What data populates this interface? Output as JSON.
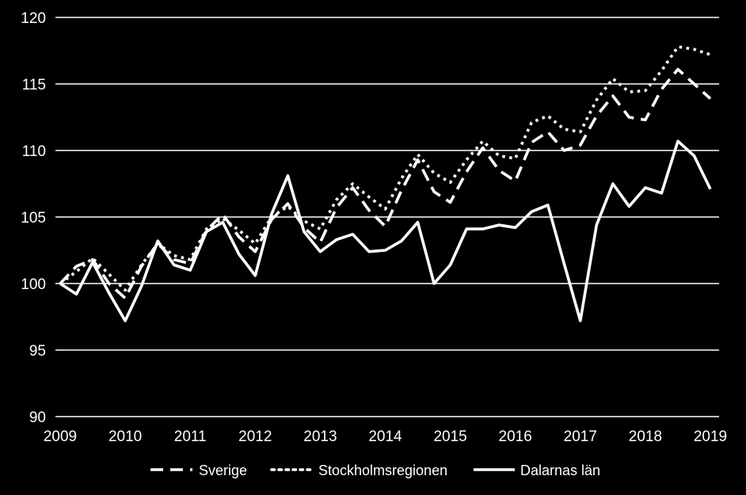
{
  "chart_data": {
    "type": "line",
    "title": "",
    "xlabel": "",
    "ylabel": "",
    "ylim": [
      90,
      120
    ],
    "yticks": [
      90,
      95,
      100,
      105,
      110,
      115,
      120
    ],
    "xticks": [
      "2009",
      "2010",
      "2011",
      "2012",
      "2013",
      "2014",
      "2015",
      "2016",
      "2017",
      "2018",
      "2019"
    ],
    "grid": "horizontal",
    "legend_position": "bottom",
    "background_color": "#000000",
    "line_color": "#ffffff",
    "x": [
      2009.0,
      2009.25,
      2009.5,
      2009.75,
      2010.0,
      2010.25,
      2010.5,
      2010.75,
      2011.0,
      2011.25,
      2011.5,
      2011.75,
      2012.0,
      2012.25,
      2012.5,
      2012.75,
      2013.0,
      2013.25,
      2013.5,
      2013.75,
      2014.0,
      2014.25,
      2014.5,
      2014.75,
      2015.0,
      2015.25,
      2015.5,
      2015.75,
      2016.0,
      2016.25,
      2016.5,
      2016.75,
      2017.0,
      2017.25,
      2017.5,
      2017.75,
      2018.0,
      2018.25,
      2018.5,
      2018.75,
      2019.0
    ],
    "series": [
      {
        "name": "Sverige",
        "style": "dashed",
        "values": [
          100.0,
          101.3,
          101.8,
          100.0,
          98.9,
          101.3,
          103.0,
          101.8,
          101.5,
          104.0,
          105.2,
          103.5,
          102.4,
          104.8,
          106.0,
          104.2,
          103.1,
          105.7,
          107.2,
          105.5,
          104.3,
          107.0,
          109.3,
          106.9,
          106.1,
          108.4,
          110.2,
          108.5,
          107.7,
          110.6,
          111.4,
          110.0,
          110.4,
          112.6,
          114.1,
          112.5,
          112.3,
          114.6,
          116.1,
          115.0,
          113.9
        ]
      },
      {
        "name": "Stockholmsregionen",
        "style": "dotted",
        "values": [
          100.0,
          100.9,
          101.9,
          100.7,
          99.5,
          101.4,
          103.0,
          102.1,
          101.8,
          104.1,
          104.9,
          104.0,
          103.0,
          105.0,
          105.8,
          104.7,
          104.1,
          106.3,
          107.5,
          106.5,
          105.6,
          107.9,
          109.7,
          108.3,
          107.6,
          109.3,
          110.7,
          109.6,
          109.4,
          112.1,
          112.6,
          111.6,
          111.4,
          113.8,
          115.4,
          114.4,
          114.5,
          116.0,
          117.8,
          117.6,
          117.2
        ]
      },
      {
        "name": "Dalarnas län",
        "style": "solid",
        "values": [
          100.0,
          99.2,
          101.6,
          99.3,
          97.2,
          99.8,
          103.2,
          101.4,
          101.0,
          103.9,
          104.6,
          102.2,
          100.6,
          105.2,
          108.1,
          103.9,
          102.4,
          103.3,
          103.7,
          102.4,
          102.5,
          103.2,
          104.6,
          100.0,
          101.4,
          104.1,
          104.1,
          104.4,
          104.2,
          105.4,
          105.9,
          101.5,
          97.2,
          104.4,
          107.5,
          105.8,
          107.2,
          106.8,
          110.7,
          109.6,
          107.1
        ]
      }
    ]
  }
}
